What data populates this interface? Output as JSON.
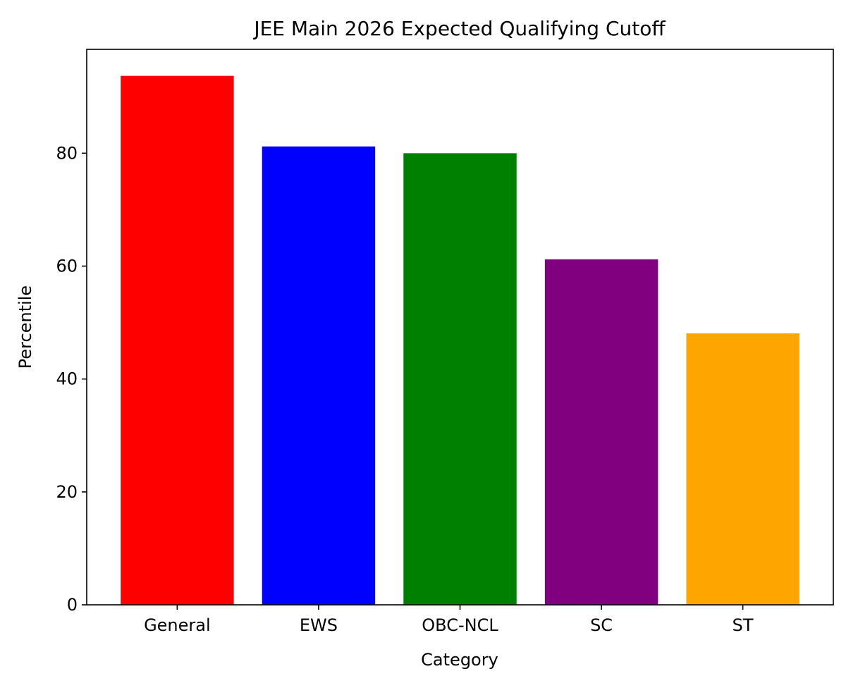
{
  "chart_data": {
    "type": "bar",
    "title": "JEE Main 2026 Expected Qualifying Cutoff",
    "xlabel": "Category",
    "ylabel": "Percentile",
    "categories": [
      "General",
      "EWS",
      "OBC-NCL",
      "SC",
      "ST"
    ],
    "values": [
      93.7,
      81.2,
      80.0,
      61.2,
      48.1
    ],
    "colors": [
      "#ff0000",
      "#0000ff",
      "#008000",
      "#800080",
      "#ffa500"
    ],
    "ylim": [
      0,
      98.4
    ],
    "yticks": [
      0,
      20,
      40,
      60,
      80
    ],
    "grid": false
  }
}
